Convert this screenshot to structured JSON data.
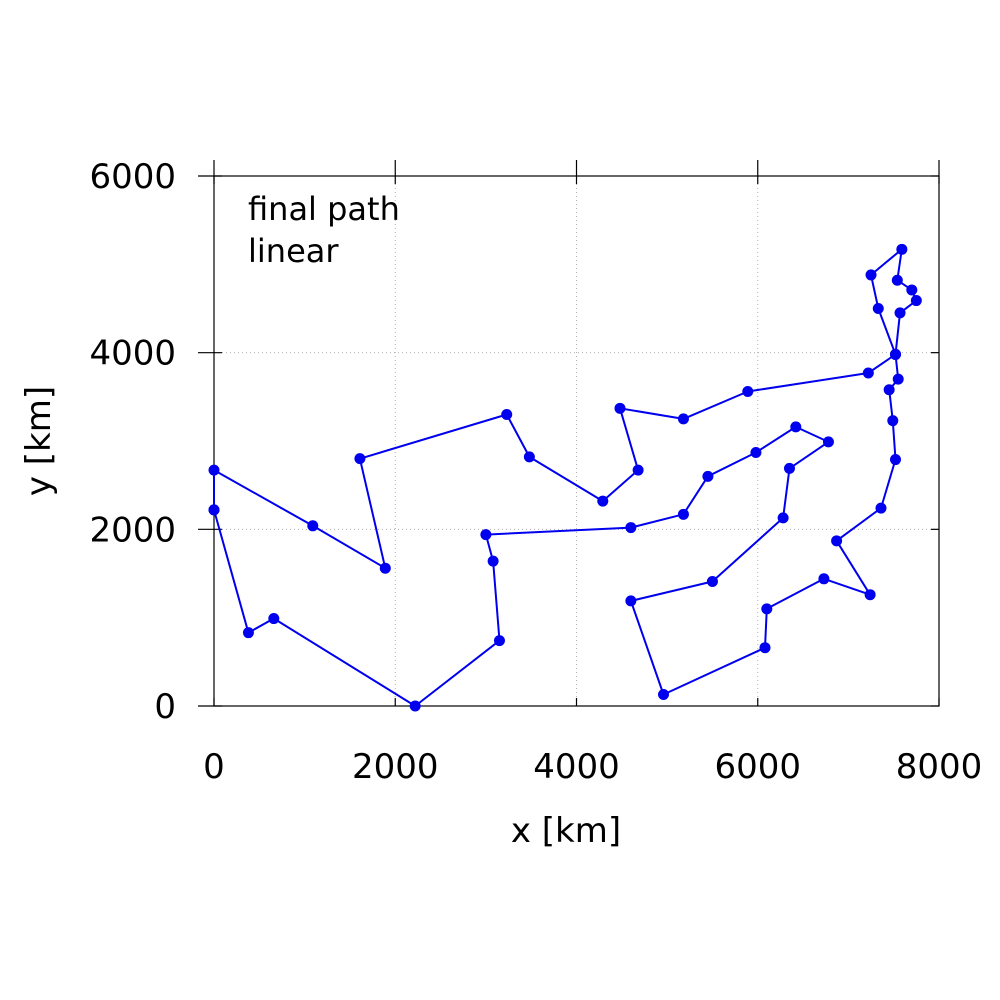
{
  "chart_data": {
    "type": "line",
    "title": "",
    "xlabel": "x [km]",
    "ylabel": "y [km]",
    "xlim": [
      0,
      8000
    ],
    "ylim": [
      0,
      6000
    ],
    "xticks": [
      "0",
      "2000",
      "4000",
      "6000",
      "8000"
    ],
    "yticks": [
      "0",
      "2000",
      "4000",
      "6000"
    ],
    "grid": true,
    "annotations": [
      "final path",
      "linear"
    ],
    "colors": {
      "series": "#0000ee"
    },
    "series": [
      {
        "x": [
          0,
          380,
          660,
          2220,
          3150,
          3080,
          3000,
          4600,
          5180,
          5450,
          5980,
          6420,
          6780,
          6350,
          6280,
          5500,
          4600,
          4960,
          6080,
          6100,
          6730,
          7240,
          6870,
          7360,
          7520,
          7490,
          7450,
          7550,
          7520,
          7570,
          7750,
          7700,
          7540,
          7590,
          7250,
          7330,
          7520,
          7220,
          5890,
          5180,
          4480,
          4680,
          4290,
          3480,
          3230,
          1610,
          1890,
          1090,
          0,
          0
        ],
        "y": [
          2220,
          830,
          990,
          0,
          740,
          1640,
          1940,
          2020,
          2170,
          2600,
          2870,
          3160,
          2990,
          2690,
          2130,
          1410,
          1190,
          130,
          660,
          1100,
          1440,
          1260,
          1870,
          2240,
          2790,
          3230,
          3580,
          3700,
          3980,
          4450,
          4590,
          4710,
          4820,
          5170,
          4880,
          4500,
          3980,
          3770,
          3560,
          3250,
          3370,
          2670,
          2320,
          2820,
          3300,
          2800,
          1560,
          2040,
          2670,
          2220
        ]
      }
    ]
  }
}
